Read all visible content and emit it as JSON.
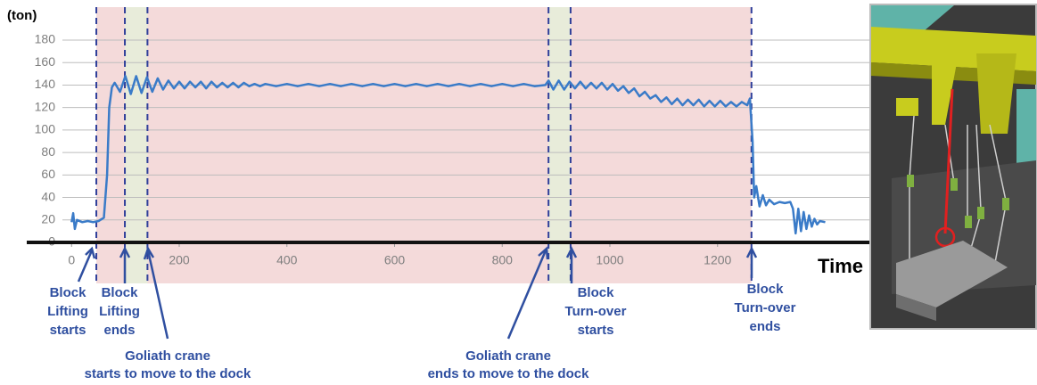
{
  "chart_data": {
    "type": "line",
    "y_label": "(ton)",
    "x_label": "Time",
    "xlim": [
      -17,
      1482
    ],
    "ylim": [
      0,
      180
    ],
    "xticks": [
      0,
      200,
      400,
      600,
      800,
      1000,
      1200
    ],
    "yticks": [
      0,
      20,
      40,
      60,
      80,
      100,
      120,
      140,
      160,
      180
    ],
    "grid": true,
    "events": [
      46,
      99,
      141,
      886,
      927,
      1263
    ],
    "regions": [
      {
        "start": 46,
        "end": 1263,
        "color": "#f2d3d3"
      },
      {
        "start": 99,
        "end": 141,
        "color": "#e5efd9"
      },
      {
        "start": 886,
        "end": 927,
        "color": "#e5efd9"
      }
    ],
    "series": [
      {
        "color": "#3a7bc8",
        "x": [
          0,
          3,
          6,
          10,
          20,
          30,
          40,
          50,
          60,
          66,
          70,
          75,
          80,
          90,
          100,
          110,
          120,
          130,
          140,
          150,
          160,
          170,
          180,
          190,
          200,
          210,
          220,
          230,
          240,
          250,
          260,
          270,
          280,
          290,
          300,
          310,
          320,
          330,
          340,
          350,
          360,
          380,
          400,
          420,
          440,
          460,
          480,
          500,
          520,
          540,
          560,
          580,
          600,
          620,
          640,
          660,
          680,
          700,
          720,
          740,
          760,
          780,
          800,
          820,
          840,
          860,
          880,
          886,
          895,
          905,
          915,
          925,
          935,
          945,
          955,
          965,
          975,
          985,
          995,
          1005,
          1015,
          1025,
          1035,
          1045,
          1055,
          1065,
          1075,
          1085,
          1095,
          1105,
          1115,
          1125,
          1135,
          1145,
          1155,
          1165,
          1175,
          1185,
          1195,
          1205,
          1215,
          1225,
          1235,
          1245,
          1255,
          1260,
          1265,
          1268,
          1272,
          1278,
          1284,
          1290,
          1296,
          1305,
          1315,
          1325,
          1335,
          1340,
          1345,
          1350,
          1355,
          1360,
          1365,
          1370,
          1375,
          1380,
          1385,
          1390,
          1400
        ],
        "values": [
          18,
          26,
          12,
          20,
          18,
          19,
          18,
          19,
          22,
          60,
          120,
          138,
          142,
          134,
          148,
          132,
          148,
          133,
          147,
          134,
          146,
          136,
          144,
          137,
          143,
          137,
          143,
          138,
          143,
          137,
          143,
          138,
          142,
          138,
          142,
          138,
          142,
          139,
          141,
          139,
          141,
          139,
          141,
          139,
          141,
          139,
          141,
          139,
          141,
          139,
          141,
          139,
          141,
          139,
          141,
          139,
          141,
          139,
          141,
          139,
          141,
          139,
          141,
          139,
          141,
          139,
          140,
          144,
          136,
          144,
          136,
          143,
          137,
          143,
          137,
          142,
          137,
          142,
          136,
          141,
          135,
          139,
          133,
          137,
          130,
          134,
          128,
          131,
          125,
          129,
          123,
          128,
          122,
          127,
          122,
          127,
          121,
          126,
          121,
          126,
          121,
          125,
          121,
          125,
          122,
          128,
          90,
          40,
          50,
          32,
          42,
          33,
          38,
          34,
          36,
          35,
          36,
          30,
          8,
          30,
          10,
          27,
          12,
          24,
          14,
          21,
          16,
          19,
          18
        ]
      }
    ]
  },
  "annotations": [
    {
      "lines": [
        "Block",
        "Lifting",
        "starts"
      ]
    },
    {
      "lines": [
        "Block",
        "Lifting",
        "ends"
      ]
    },
    {
      "lines": [
        "Goliath crane",
        "starts to move to the dock"
      ]
    },
    {
      "lines": [
        "Goliath crane",
        "ends to move to the dock"
      ]
    },
    {
      "lines": [
        "Block",
        "Turn-over",
        "starts"
      ]
    },
    {
      "lines": [
        "Block",
        "Turn-over",
        "ends"
      ]
    }
  ]
}
